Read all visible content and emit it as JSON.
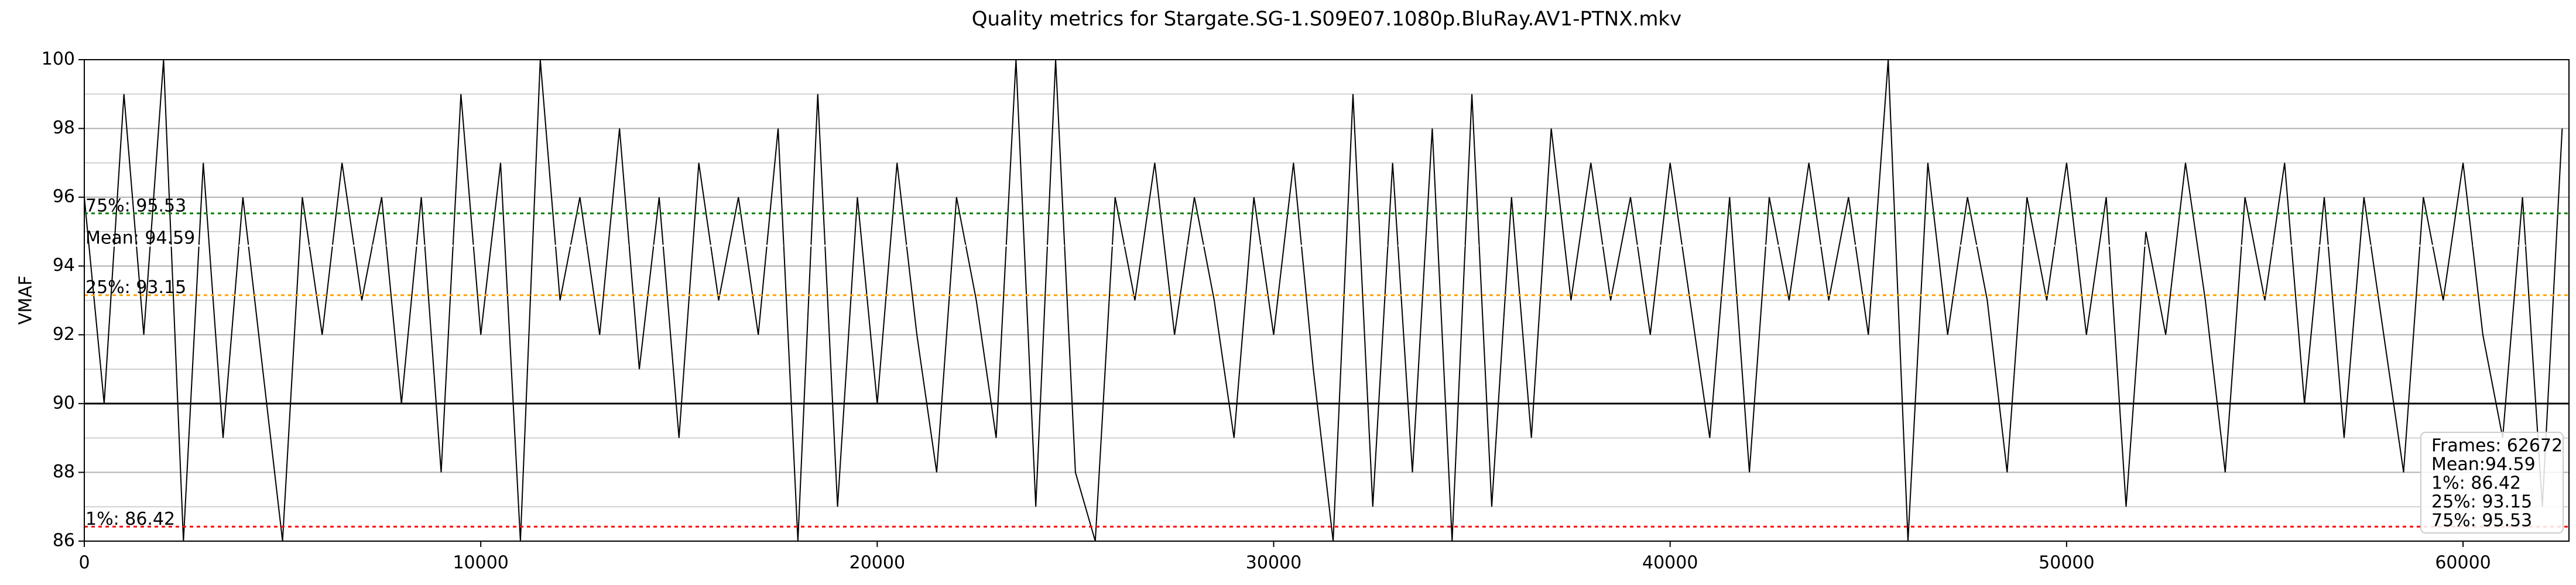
{
  "chart_data": {
    "type": "line",
    "title": "Quality metrics for Stargate.SG-1.S09E07.1080p.BluRay.AV1-PTNX.mkv",
    "ylabel": "VMAF",
    "x": [
      0,
      500,
      1000,
      1500,
      2000,
      2500,
      3000,
      3500,
      4000,
      4500,
      5000,
      5500,
      6000,
      6500,
      7000,
      7500,
      8000,
      8500,
      9000,
      9500,
      10000,
      10500,
      11000,
      11500,
      12000,
      12500,
      13000,
      13500,
      14000,
      14500,
      15000,
      15500,
      16000,
      16500,
      17000,
      17500,
      18000,
      18500,
      19000,
      19500,
      20000,
      20500,
      21000,
      21500,
      22000,
      22500,
      23000,
      23500,
      24000,
      24500,
      25000,
      25500,
      26000,
      26500,
      27000,
      27500,
      28000,
      28500,
      29000,
      29500,
      30000,
      30500,
      31000,
      31500,
      32000,
      32500,
      33000,
      33500,
      34000,
      34500,
      35000,
      35500,
      36000,
      36500,
      37000,
      37500,
      38000,
      38500,
      39000,
      39500,
      40000,
      40500,
      41000,
      41500,
      42000,
      42500,
      43000,
      43500,
      44000,
      44500,
      45000,
      45500,
      46000,
      46500,
      47000,
      47500,
      48000,
      48500,
      49000,
      49500,
      50000,
      50500,
      51000,
      51500,
      52000,
      52500,
      53000,
      53500,
      54000,
      54500,
      55000,
      55500,
      56000,
      56500,
      57000,
      57500,
      58000,
      58500,
      59000,
      59500,
      60000,
      60500,
      61000,
      61500,
      62000,
      62500
    ],
    "series": [
      {
        "name": "VMAF",
        "color": "#000000",
        "values": [
          96,
          90,
          99,
          92,
          100,
          86,
          97,
          89,
          96,
          91,
          86,
          96,
          92,
          97,
          93,
          96,
          90,
          96,
          88,
          99,
          92,
          97,
          86,
          100,
          93,
          96,
          92,
          98,
          91,
          96,
          89,
          97,
          93,
          96,
          92,
          98,
          86,
          99,
          87,
          96,
          90,
          97,
          92,
          88,
          96,
          93,
          89,
          100,
          87,
          100,
          88,
          86,
          96,
          93,
          97,
          92,
          96,
          93,
          89,
          96,
          92,
          97,
          91,
          86,
          99,
          87,
          97,
          88,
          98,
          86,
          99,
          87,
          96,
          89,
          98,
          93,
          97,
          93,
          96,
          92,
          97,
          93,
          89,
          96,
          88,
          96,
          93,
          97,
          93,
          96,
          92,
          100,
          86,
          97,
          92,
          96,
          93,
          88,
          96,
          93,
          97,
          92,
          96,
          87,
          95,
          92,
          97,
          93,
          88,
          96,
          93,
          97,
          90,
          96,
          89,
          96,
          92,
          88,
          96,
          93,
          97,
          92,
          89,
          96,
          87,
          98
        ]
      }
    ],
    "reference_lines": [
      {
        "value": 90,
        "color": "#000000"
      },
      {
        "label": "1%: 86.42",
        "value": 86.42,
        "color": "#ff0000"
      },
      {
        "label": "25%: 93.15",
        "value": 93.15,
        "color": "#ffa500"
      },
      {
        "label": "Mean: 94.59",
        "value": 94.59,
        "color": "#ffffff"
      },
      {
        "label": "75%: 95.53",
        "value": 95.53,
        "color": "#008000"
      }
    ],
    "stats_box": [
      "Frames: 62672",
      "Mean:94.59",
      "1%: 86.42",
      "25%: 93.15",
      "75%: 95.53"
    ],
    "xlim": [
      0,
      62672
    ],
    "xticks": [
      0,
      10000,
      20000,
      30000,
      40000,
      50000,
      60000
    ],
    "ylim": [
      86,
      100
    ],
    "yticks": [
      86,
      88,
      90,
      92,
      94,
      96,
      98,
      100
    ],
    "yminor": [
      87,
      89,
      91,
      93,
      95,
      97,
      99
    ],
    "grid": true
  }
}
